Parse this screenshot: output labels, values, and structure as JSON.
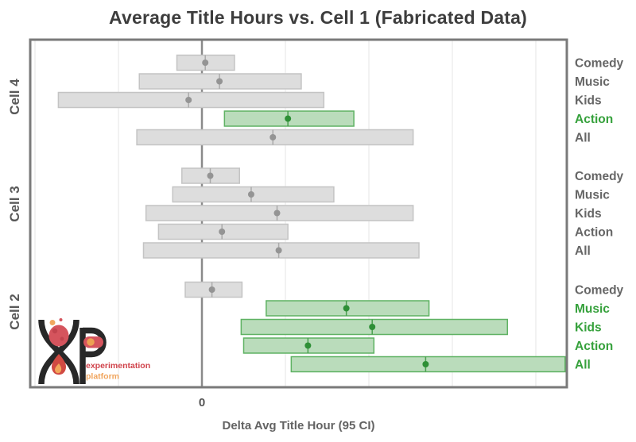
{
  "title": "Average Title Hours vs. Cell 1 (Fabricated Data)",
  "axis": {
    "x_label": "Delta Avg Title Hour (95 CI)",
    "x_tick": "0"
  },
  "logo": {
    "line1": "experimentation",
    "line2": "platform"
  },
  "colors": {
    "title_text": "#3d3d3d",
    "axis_text": "#636363",
    "cell_label_text": "#595959",
    "frame": "#7a7a7a",
    "grid": "#eaeaea",
    "zero_line": "#8a8a8a",
    "gray_fill": "#dddddd",
    "gray_border": "#c4c4c4",
    "gray_dot": "#949494",
    "gray_mean_line": "#aaaaaa",
    "gray_label": "#666666",
    "green_fill": "#badcbb",
    "green_border": "#5fb263",
    "green_dot": "#2e8f36",
    "green_mean_line": "#4ba050",
    "green_label": "#36a13c",
    "logo_red": "#d5545d",
    "logo_orange": "#f0a45c",
    "logo_black": "#282828"
  },
  "chart_data": {
    "type": "bar",
    "variant": "horizontal-95ci-interval",
    "title": "Average Title Hours vs. Cell 1 (Fabricated Data)",
    "xlabel": "Delta Avg Title Hour (95 CI)",
    "ylabel": "",
    "x_tick_labels": [
      "0"
    ],
    "xlim": [
      -2.06,
      4.37
    ],
    "grid": "vertical-light",
    "zero_reference_line": 0,
    "legend_position": "none",
    "groups": [
      {
        "name": "Cell 4",
        "rows": [
          {
            "category": "Comedy",
            "lo": -0.3,
            "mean": 0.04,
            "hi": 0.39,
            "significant": false
          },
          {
            "category": "Music",
            "lo": -0.75,
            "mean": 0.21,
            "hi": 1.19,
            "significant": false
          },
          {
            "category": "Kids",
            "lo": -1.72,
            "mean": -0.16,
            "hi": 1.46,
            "significant": false
          },
          {
            "category": "Action",
            "lo": 0.27,
            "mean": 1.03,
            "hi": 1.82,
            "significant": true
          },
          {
            "category": "All",
            "lo": -0.78,
            "mean": 0.85,
            "hi": 2.53,
            "significant": false
          }
        ]
      },
      {
        "name": "Cell 3",
        "rows": [
          {
            "category": "Comedy",
            "lo": -0.24,
            "mean": 0.1,
            "hi": 0.45,
            "significant": false
          },
          {
            "category": "Music",
            "lo": -0.35,
            "mean": 0.59,
            "hi": 1.58,
            "significant": false
          },
          {
            "category": "Kids",
            "lo": -0.67,
            "mean": 0.9,
            "hi": 2.53,
            "significant": false
          },
          {
            "category": "Action",
            "lo": -0.52,
            "mean": 0.24,
            "hi": 1.03,
            "significant": false
          },
          {
            "category": "All",
            "lo": -0.7,
            "mean": 0.92,
            "hi": 2.6,
            "significant": false
          }
        ]
      },
      {
        "name": "Cell 2",
        "rows": [
          {
            "category": "Comedy",
            "lo": -0.2,
            "mean": 0.12,
            "hi": 0.48,
            "significant": false
          },
          {
            "category": "Music",
            "lo": 0.77,
            "mean": 1.73,
            "hi": 2.72,
            "significant": true
          },
          {
            "category": "Kids",
            "lo": 0.47,
            "mean": 2.04,
            "hi": 3.66,
            "significant": true
          },
          {
            "category": "Action",
            "lo": 0.5,
            "mean": 1.27,
            "hi": 2.06,
            "significant": true
          },
          {
            "category": "All",
            "lo": 1.07,
            "mean": 2.68,
            "hi": 4.35,
            "significant": true
          }
        ]
      }
    ]
  }
}
